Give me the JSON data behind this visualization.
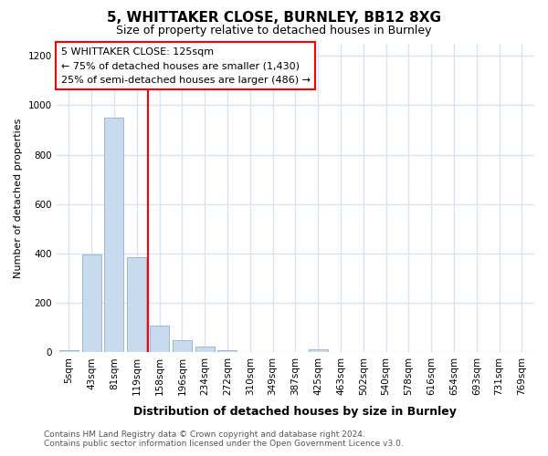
{
  "title1": "5, WHITTAKER CLOSE, BURNLEY, BB12 8XG",
  "title2": "Size of property relative to detached houses in Burnley",
  "xlabel": "Distribution of detached houses by size in Burnley",
  "ylabel": "Number of detached properties",
  "categories": [
    "5sqm",
    "43sqm",
    "81sqm",
    "119sqm",
    "158sqm",
    "196sqm",
    "234sqm",
    "272sqm",
    "310sqm",
    "349sqm",
    "387sqm",
    "425sqm",
    "463sqm",
    "502sqm",
    "540sqm",
    "578sqm",
    "616sqm",
    "654sqm",
    "693sqm",
    "731sqm",
    "769sqm"
  ],
  "values": [
    10,
    395,
    950,
    385,
    108,
    50,
    25,
    8,
    0,
    0,
    0,
    12,
    0,
    0,
    0,
    0,
    0,
    0,
    0,
    0,
    0
  ],
  "bar_color": "#c8daee",
  "bar_edge_color": "#9ab8d8",
  "red_line_x": 3.5,
  "annotation_text1": "5 WHITTAKER CLOSE: 125sqm",
  "annotation_text2": "← 75% of detached houses are smaller (1,430)",
  "annotation_text3": "25% of semi-detached houses are larger (486) →",
  "ylim": [
    0,
    1250
  ],
  "yticks": [
    0,
    200,
    400,
    600,
    800,
    1000,
    1200
  ],
  "footer1": "Contains HM Land Registry data © Crown copyright and database right 2024.",
  "footer2": "Contains public sector information licensed under the Open Government Licence v3.0.",
  "background_color": "#ffffff",
  "grid_color": "#d8e4f0",
  "title1_fontsize": 11,
  "title2_fontsize": 9,
  "xlabel_fontsize": 9,
  "ylabel_fontsize": 8,
  "footer_fontsize": 6.5,
  "tick_fontsize": 7.5
}
